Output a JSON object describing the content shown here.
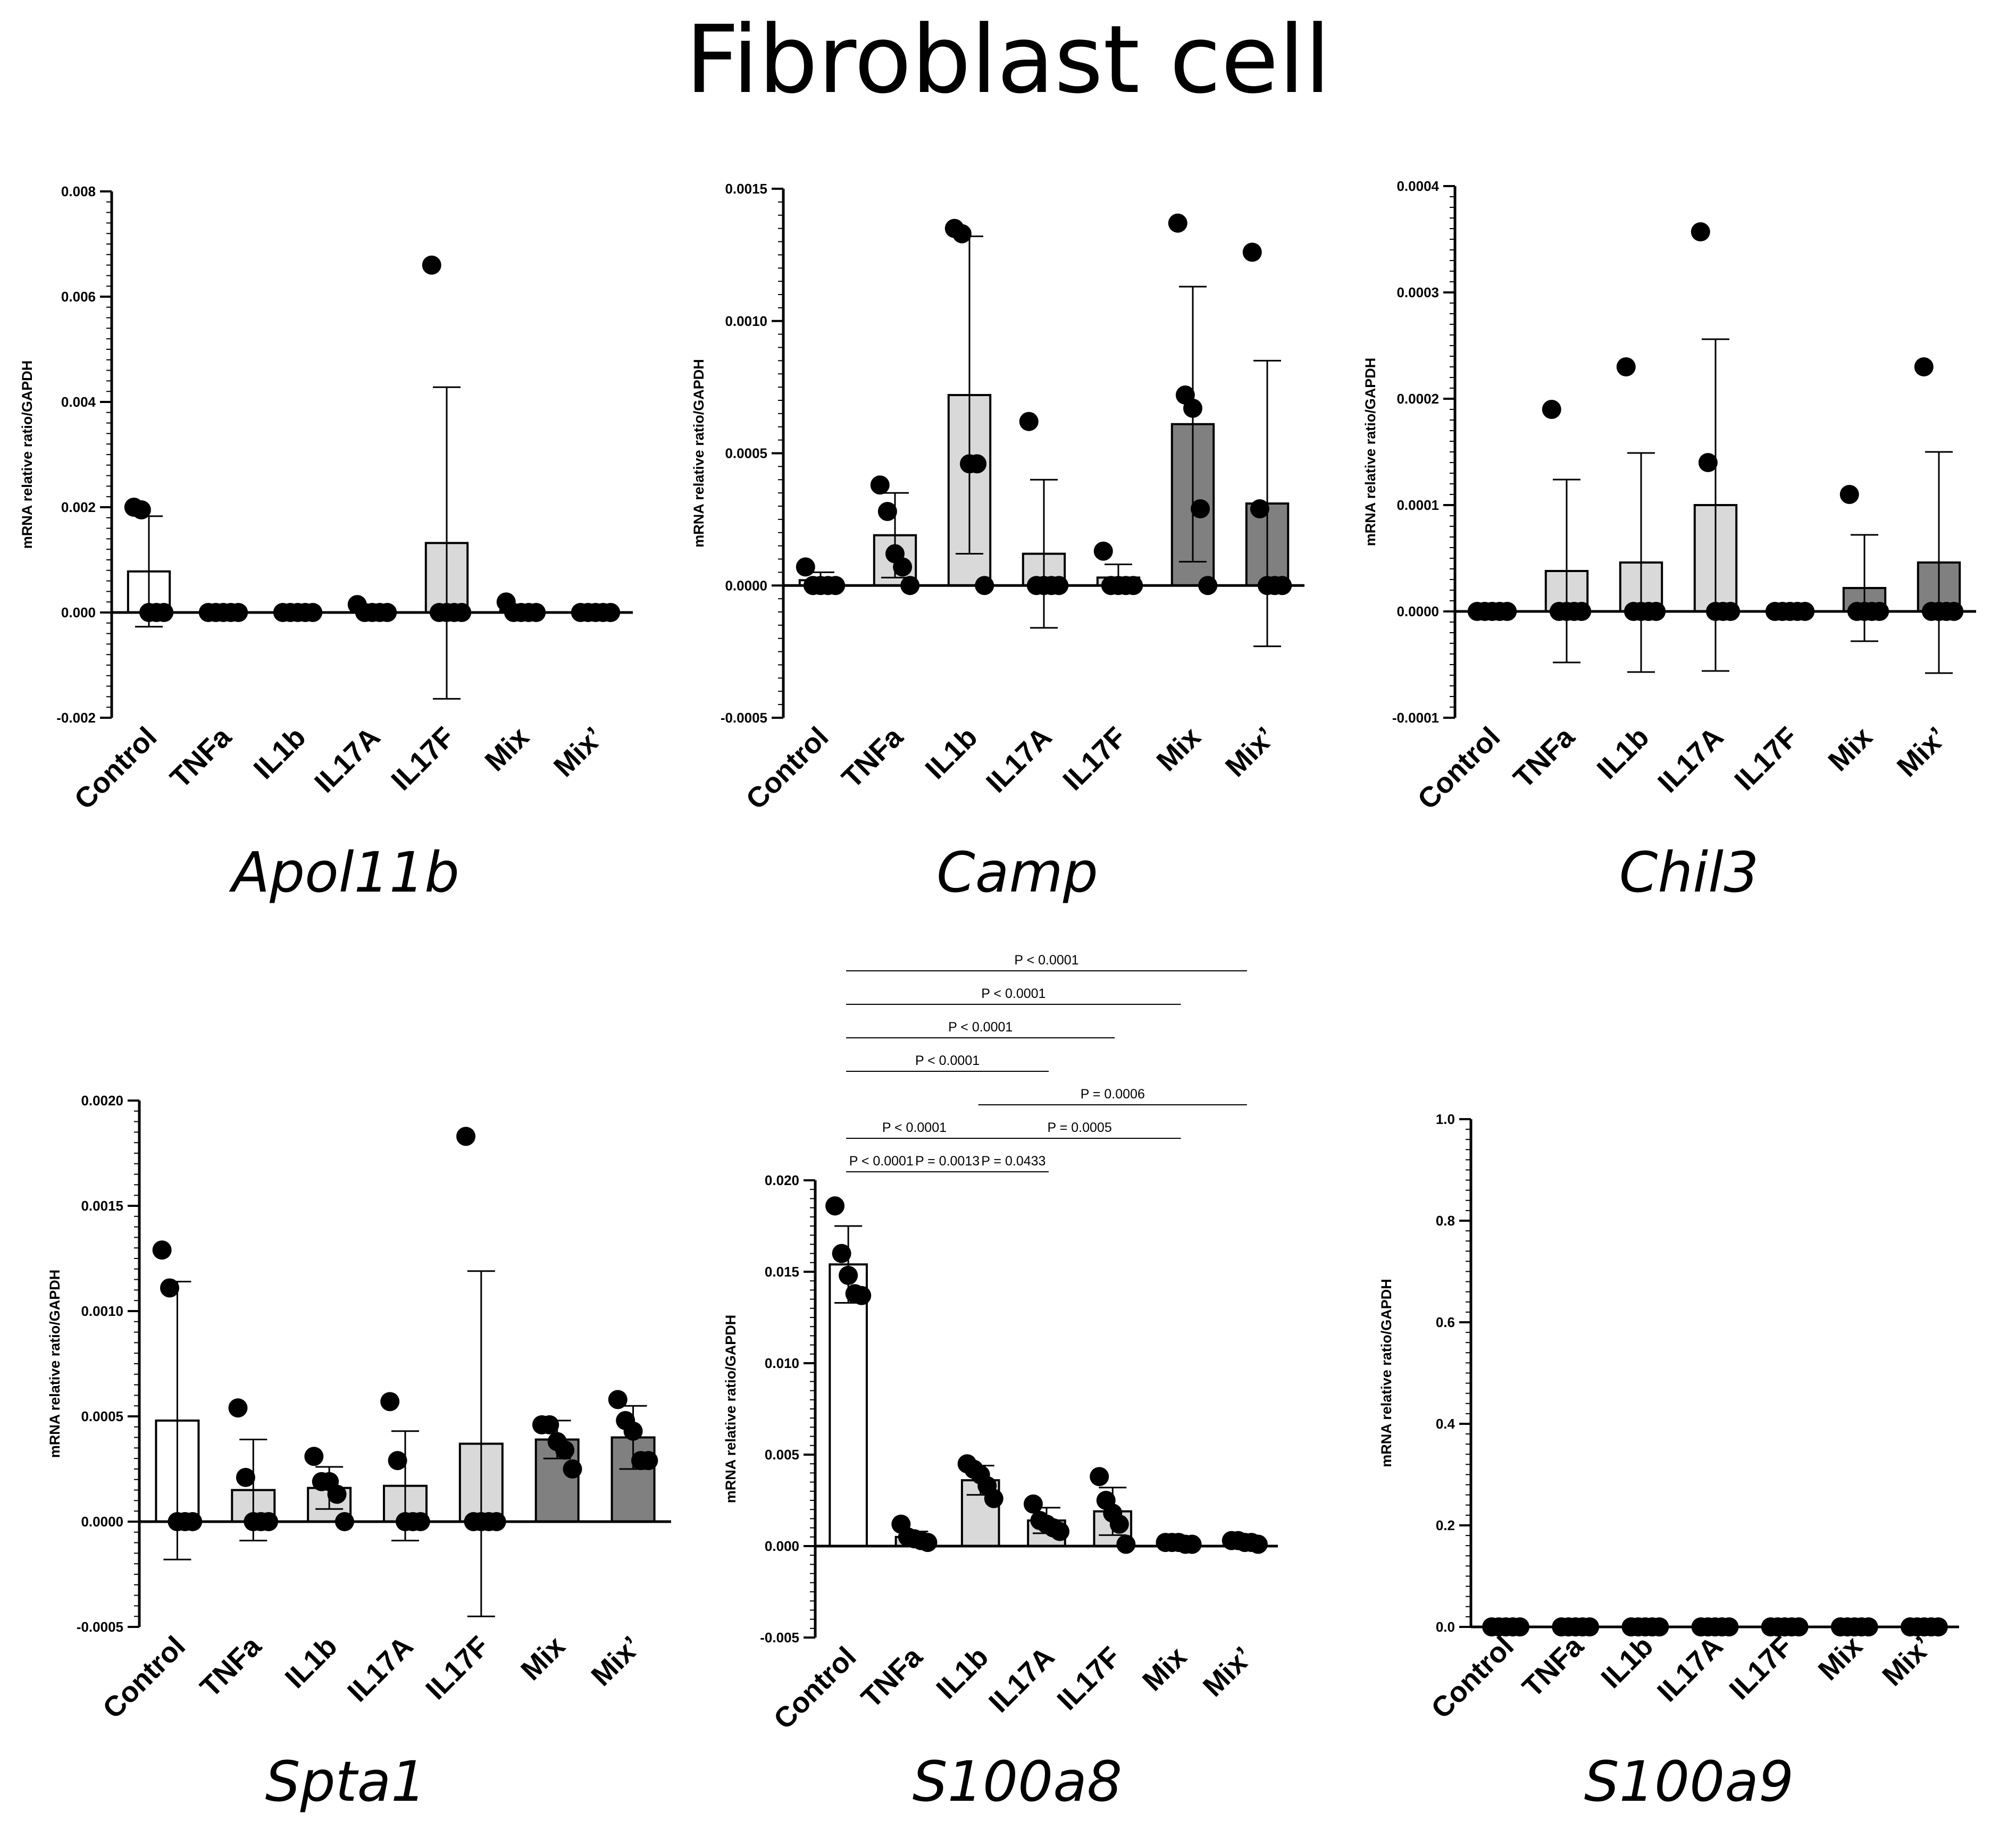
{
  "figure": {
    "title": "Fibroblast cell"
  },
  "colors": {
    "Control": "#ffffff",
    "TNFa": "#d9d9d9",
    "IL1b": "#d9d9d9",
    "IL17A": "#d9d9d9",
    "IL17F": "#d9d9d9",
    "Mix": "#808080",
    "Mix’": "#808080",
    "ink": "#000000"
  },
  "chart_data": [
    {
      "type": "bar",
      "gene": "Apol11b",
      "ylabel": "mRNA relative ratio/GAPDH",
      "ylim": [
        -0.002,
        0.008
      ],
      "yticks": [
        -0.002,
        0.0,
        0.002,
        0.004,
        0.006,
        0.008
      ],
      "ytick_labels": [
        "-0.002",
        "0.000",
        "0.002",
        "0.004",
        "0.006",
        "0.008"
      ],
      "categories": [
        "Control",
        "TNFa",
        "IL1b",
        "IL17A",
        "IL17F",
        "Mix",
        "Mix’"
      ],
      "means": [
        0.00078,
        0.0,
        0.0,
        2e-05,
        0.00132,
        4e-05,
        0.0
      ],
      "sd": [
        0.00105,
        0.0,
        0.0,
        2e-05,
        0.00296,
        7e-05,
        0.0
      ],
      "points": [
        [
          0.002,
          0.00195,
          0.0,
          0.0,
          0.0
        ],
        [
          0.0,
          0.0,
          0.0,
          0.0,
          0.0
        ],
        [
          0.0,
          0.0,
          0.0,
          0.0,
          0.0
        ],
        [
          0.00015,
          0.0,
          0.0,
          0.0,
          0.0
        ],
        [
          0.0066,
          0.0,
          0.0,
          0.0,
          0.0
        ],
        [
          0.0002,
          0.0,
          0.0,
          0.0,
          0.0
        ],
        [
          0.0,
          0.0,
          0.0,
          0.0,
          0.0
        ]
      ],
      "significance": []
    },
    {
      "type": "bar",
      "gene": "Camp",
      "ylabel": "mRNA relative ratio/GAPDH",
      "ylim": [
        -0.0005,
        0.0015
      ],
      "yticks": [
        -0.0005,
        0.0,
        0.0005,
        0.001,
        0.0015
      ],
      "ytick_labels": [
        "-0.0005",
        "0.0000",
        "0.0005",
        "0.0010",
        "0.0015"
      ],
      "categories": [
        "Control",
        "TNFa",
        "IL1b",
        "IL17A",
        "IL17F",
        "Mix",
        "Mix’"
      ],
      "means": [
        2e-05,
        0.00019,
        0.00072,
        0.00012,
        3e-05,
        0.00061,
        0.00031
      ],
      "sd": [
        3e-05,
        0.00016,
        0.0006,
        0.00028,
        5e-05,
        0.00052,
        0.00054
      ],
      "points": [
        [
          7e-05,
          0.0,
          0.0,
          0.0,
          0.0
        ],
        [
          0.00038,
          0.00028,
          0.00012,
          7e-05,
          0.0
        ],
        [
          0.00135,
          0.00133,
          0.00046,
          0.00046,
          0.0
        ],
        [
          0.00062,
          0.0,
          0.0,
          0.0,
          0.0
        ],
        [
          0.00013,
          0.0,
          0.0,
          0.0,
          0.0
        ],
        [
          0.00137,
          0.00072,
          0.00067,
          0.00029,
          0.0
        ],
        [
          0.00126,
          0.00029,
          0.0,
          0.0,
          0.0
        ]
      ],
      "significance": []
    },
    {
      "type": "bar",
      "gene": "Chil3",
      "ylabel": "mRNA relative ratio/GAPDH",
      "ylim": [
        -0.0001,
        0.0004
      ],
      "yticks": [
        -0.0001,
        0.0,
        0.0001,
        0.0002,
        0.0003,
        0.0004
      ],
      "ytick_labels": [
        "-0.0001",
        "0.0000",
        "0.0001",
        "0.0002",
        "0.0003",
        "0.0004"
      ],
      "categories": [
        "Control",
        "TNFa",
        "IL1b",
        "IL17A",
        "IL17F",
        "Mix",
        "Mix’"
      ],
      "means": [
        0.0,
        3.8e-05,
        4.6e-05,
        0.0001,
        0.0,
        2.2e-05,
        4.6e-05
      ],
      "sd": [
        0.0,
        8.6e-05,
        0.000103,
        0.000156,
        0.0,
        5e-05,
        0.000104
      ],
      "points": [
        [
          0.0,
          0.0,
          0.0,
          0.0,
          0.0
        ],
        [
          0.00019,
          0.0,
          0.0,
          0.0,
          0.0
        ],
        [
          0.00023,
          0.0,
          0.0,
          0.0,
          0.0
        ],
        [
          0.000357,
          0.00014,
          0.0,
          0.0,
          0.0
        ],
        [
          0.0,
          0.0,
          0.0,
          0.0,
          0.0
        ],
        [
          0.00011,
          0.0,
          0.0,
          0.0,
          0.0
        ],
        [
          0.00023,
          0.0,
          0.0,
          0.0,
          0.0
        ]
      ],
      "significance": []
    },
    {
      "type": "bar",
      "gene": "Spta1",
      "ylabel": "mRNA relative ratio/GAPDH",
      "ylim": [
        -0.0005,
        0.002
      ],
      "yticks": [
        -0.0005,
        0.0,
        0.0005,
        0.001,
        0.0015,
        0.002
      ],
      "ytick_labels": [
        "-0.0005",
        "0.0000",
        "0.0005",
        "0.0010",
        "0.0015",
        "0.0020"
      ],
      "categories": [
        "Control",
        "TNFa",
        "IL1b",
        "IL17A",
        "IL17F",
        "Mix",
        "Mix’"
      ],
      "means": [
        0.00048,
        0.00015,
        0.00016,
        0.00017,
        0.00037,
        0.00039,
        0.0004
      ],
      "sd": [
        0.00066,
        0.00024,
        0.0001,
        0.00026,
        0.00082,
        9e-05,
        0.00015
      ],
      "points": [
        [
          0.00129,
          0.00111,
          0.0,
          0.0,
          0.0
        ],
        [
          0.00054,
          0.00021,
          0.0,
          0.0,
          0.0
        ],
        [
          0.00031,
          0.00019,
          0.00019,
          0.00013,
          0.0
        ],
        [
          0.00057,
          0.00029,
          0.0,
          0.0,
          0.0
        ],
        [
          0.00183,
          0.0,
          0.0,
          0.0,
          0.0
        ],
        [
          0.00046,
          0.00046,
          0.00038,
          0.00034,
          0.00025
        ],
        [
          0.00058,
          0.00048,
          0.00043,
          0.00029,
          0.00029
        ]
      ],
      "significance": []
    },
    {
      "type": "bar",
      "gene": "S100a8",
      "ylabel": "mRNA relative ratio/GAPDH",
      "ylim": [
        -0.005,
        0.02
      ],
      "yticks": [
        -0.005,
        0.0,
        0.005,
        0.01,
        0.015,
        0.02
      ],
      "ytick_labels": [
        "-0.005",
        "0.000",
        "0.005",
        "0.010",
        "0.015",
        "0.020"
      ],
      "categories": [
        "Control",
        "TNFa",
        "IL1b",
        "IL17A",
        "IL17F",
        "Mix",
        "Mix’"
      ],
      "means": [
        0.0154,
        0.0005,
        0.0036,
        0.0014,
        0.0019,
        0.0002,
        0.0002
      ],
      "sd": [
        0.0021,
        0.0003,
        0.0008,
        0.0007,
        0.0013,
        0.0001,
        0.0001
      ],
      "points": [
        [
          0.0186,
          0.016,
          0.0148,
          0.0138,
          0.0137
        ],
        [
          0.0012,
          0.0005,
          0.0004,
          0.0003,
          0.0002
        ],
        [
          0.0045,
          0.0042,
          0.0039,
          0.0033,
          0.0026
        ],
        [
          0.0023,
          0.0014,
          0.0012,
          0.001,
          0.0008
        ],
        [
          0.0038,
          0.0025,
          0.0018,
          0.0012,
          0.0001
        ],
        [
          0.0002,
          0.0002,
          0.0002,
          0.0001,
          0.0001
        ],
        [
          0.0003,
          0.0003,
          0.0002,
          0.0002,
          0.0001
        ]
      ],
      "significance": [
        {
          "from": "Control",
          "to": "TNFa",
          "label": "P < 0.0001"
        },
        {
          "from": "TNFa",
          "to": "IL1b",
          "label": "P = 0.0013"
        },
        {
          "from": "IL1b",
          "to": "IL17A",
          "label": "P = 0.0433"
        },
        {
          "from": "Control",
          "to": "IL1b",
          "label": "P < 0.0001"
        },
        {
          "from": "IL1b",
          "to": "Mix",
          "label": "P = 0.0005"
        },
        {
          "from": "IL1b",
          "to": "Mix’",
          "label": "P = 0.0006"
        },
        {
          "from": "Control",
          "to": "IL17A",
          "label": "P < 0.0001"
        },
        {
          "from": "Control",
          "to": "IL17F",
          "label": "P < 0.0001"
        },
        {
          "from": "Control",
          "to": "Mix",
          "label": "P < 0.0001"
        },
        {
          "from": "Control",
          "to": "Mix’",
          "label": "P < 0.0001"
        }
      ]
    },
    {
      "type": "bar",
      "gene": "S100a9",
      "ylabel": "mRNA relative ratio/GAPDH",
      "ylim": [
        0.0,
        1.0
      ],
      "yticks": [
        0.0,
        0.2,
        0.4,
        0.6,
        0.8,
        1.0
      ],
      "ytick_labels": [
        "0.0",
        "0.2",
        "0.4",
        "0.6",
        "0.8",
        "1.0"
      ],
      "categories": [
        "Control",
        "TNFa",
        "IL1b",
        "IL17A",
        "IL17F",
        "Mix",
        "Mix’"
      ],
      "means": [
        0.0,
        0.0,
        0.0,
        0.0,
        0.0,
        0.0,
        0.0
      ],
      "sd": [
        0.0,
        0.0,
        0.0,
        0.0,
        0.0,
        0.0,
        0.0
      ],
      "points": [
        [
          0,
          0,
          0,
          0,
          0
        ],
        [
          0,
          0,
          0,
          0,
          0
        ],
        [
          0,
          0,
          0,
          0,
          0
        ],
        [
          0,
          0,
          0,
          0,
          0
        ],
        [
          0,
          0,
          0,
          0,
          0
        ],
        [
          0,
          0,
          0,
          0,
          0
        ],
        [
          0,
          0,
          0,
          0,
          0
        ]
      ],
      "significance": []
    }
  ]
}
